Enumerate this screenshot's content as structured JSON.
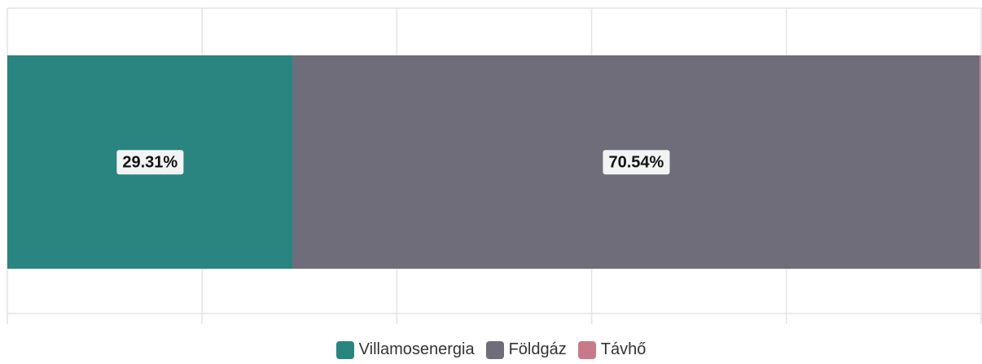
{
  "chart_data": {
    "type": "stacked_bar_horizontal",
    "categories": [
      null
    ],
    "series": [
      {
        "name": "Villamosenergia",
        "color": "#2a8480",
        "values": [
          29.31
        ],
        "value_labels": [
          "29.31%"
        ]
      },
      {
        "name": "Földgáz",
        "color": "#6e6d79",
        "values": [
          70.54
        ],
        "value_labels": [
          "70.54%"
        ]
      },
      {
        "name": "Távhő",
        "color": "#c97a8a",
        "values": [
          0.15
        ]
      }
    ],
    "xlim": [
      0,
      100
    ],
    "xticks": [
      0,
      20,
      40,
      60,
      80,
      100
    ],
    "grid": true,
    "legend": "bottom"
  }
}
